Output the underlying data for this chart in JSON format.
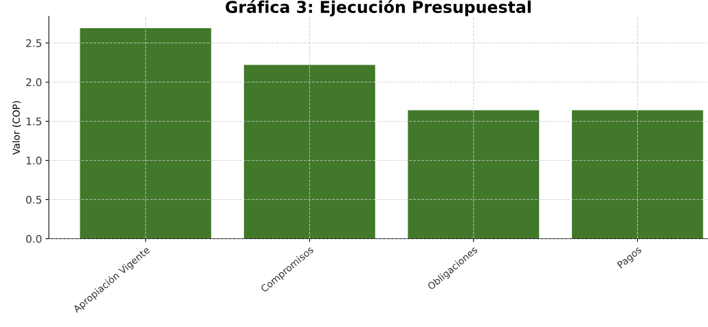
{
  "chart_data": {
    "type": "bar",
    "title": "Gráfica 3: Ejecución Presupuestal",
    "ylabel": "Valor (COP)",
    "categories": [
      "Apropiación Vigente",
      "Compromisos",
      "Obligaciones",
      "Pagos"
    ],
    "values": [
      2.69,
      2.22,
      1.64,
      1.64
    ],
    "color": "#41782a",
    "ylim": [
      0,
      2.84
    ],
    "yticks": [
      {
        "value": 0,
        "label": "0.0"
      },
      0.5,
      {
        "value": 1,
        "label": "1.0"
      },
      1.5,
      {
        "value": 2,
        "label": "2.0"
      },
      2.5
    ],
    "grid": true
  }
}
